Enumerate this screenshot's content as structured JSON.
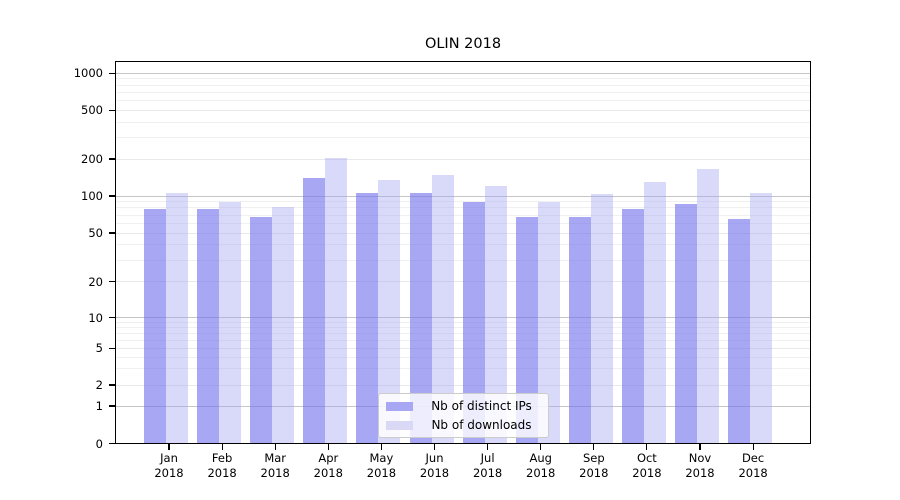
{
  "title": "OLIN 2018",
  "legend": {
    "items": [
      {
        "label": "Nb of distinct IPs",
        "swatch_color": "#a7a7f3"
      },
      {
        "label": "Nb of downloads",
        "swatch_color": "#d9d9f6"
      }
    ]
  },
  "colors": {
    "bar_ips_fill": "rgba(113,113,237,0.62)",
    "bar_downloads_fill": "rgba(160,160,240,0.40)",
    "grid_major": "#c6c6c6",
    "grid_mid": "#e9e9e9",
    "grid_minor": "#f0f0f0",
    "axis": "#000000"
  },
  "chart_data": {
    "type": "bar",
    "title": "OLIN 2018",
    "xlabel": "",
    "ylabel": "",
    "yscale": "symlog",
    "grid": true,
    "legend_position": "lower center",
    "categories": [
      "Jan 2018",
      "Feb 2018",
      "Mar 2018",
      "Apr 2018",
      "May 2018",
      "Jun 2018",
      "Jul 2018",
      "Aug 2018",
      "Sep 2018",
      "Oct 2018",
      "Nov 2018",
      "Dec 2018"
    ],
    "series": [
      {
        "name": "Nb of distinct IPs",
        "values": [
          78,
          78,
          67,
          139,
          105,
          106,
          89,
          67,
          67,
          79,
          86,
          65
        ]
      },
      {
        "name": "Nb of downloads",
        "values": [
          105,
          90,
          81,
          205,
          135,
          148,
          120,
          90,
          103,
          131,
          165,
          106
        ]
      }
    ],
    "yticks": [
      0,
      1,
      2,
      5,
      10,
      20,
      50,
      100,
      200,
      500,
      1000
    ],
    "ylim": [
      0,
      1250
    ]
  }
}
